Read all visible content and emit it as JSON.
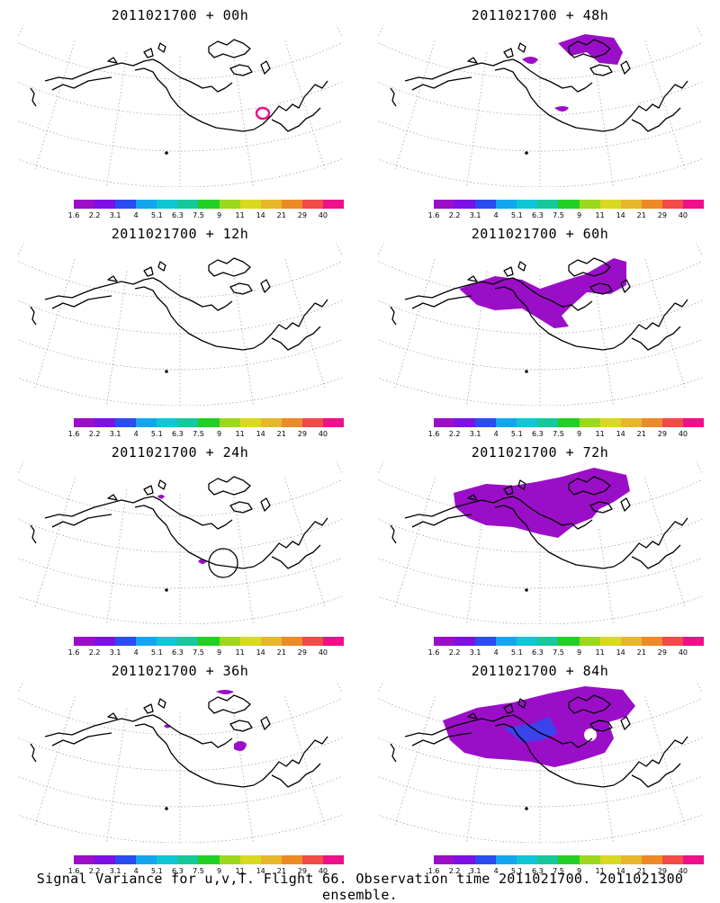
{
  "colorbar": {
    "colors": [
      "#9b0ec8",
      "#7c10e6",
      "#2a4cf0",
      "#13a6ee",
      "#10c6d4",
      "#16c89a",
      "#22cf24",
      "#9ed81c",
      "#d9d922",
      "#e6b72a",
      "#ec8a28",
      "#f24a48",
      "#f00f8a"
    ],
    "tick_labels": [
      "1.6",
      "2.2",
      "3.1",
      "4",
      "5.1",
      "6.3",
      "7.5",
      "9",
      "11",
      "14",
      "21",
      "29",
      "40"
    ]
  },
  "panels": [
    {
      "title": "2011021700 + 00h"
    },
    {
      "title": "2011021700 + 48h"
    },
    {
      "title": "2011021700 + 12h"
    },
    {
      "title": "2011021700 + 60h"
    },
    {
      "title": "2011021700 + 24h"
    },
    {
      "title": "2011021700 + 72h"
    },
    {
      "title": "2011021700 + 36h"
    },
    {
      "title": "2011021700 + 84h"
    }
  ],
  "caption": "Signal Variance for u,v,T. Flight 66. Observation time 2011021700. 2011021300 ensemble.",
  "map_feature_colors": {
    "coastline": "#000000",
    "grid": "#9a9a9a",
    "signal": "#9b0ec8",
    "signal_strong": "#2a4cf0",
    "contour": "#f00f8a"
  }
}
